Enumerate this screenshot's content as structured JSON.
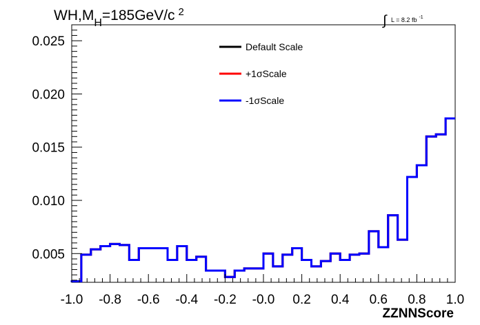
{
  "chart_data": {
    "type": "line",
    "title": "WH,M",
    "title_sub": "H",
    "title_rest": "=185GeV/c",
    "title_sup": "2",
    "lumi_integral": "∫",
    "lumi_text": "L = 8.2 fb",
    "lumi_sup": "-1",
    "xlabel": "ZZNNScore",
    "ylabel": "",
    "xlim": [
      -1.0,
      1.0
    ],
    "ylim": [
      0.0023,
      0.0265
    ],
    "x_ticks": [
      {
        "v": -1.0,
        "label": "-1.0"
      },
      {
        "v": -0.8,
        "label": "-0.8"
      },
      {
        "v": -0.6,
        "label": "-0.6"
      },
      {
        "v": -0.4,
        "label": "-0.4"
      },
      {
        "v": -0.2,
        "label": "-0.2"
      },
      {
        "v": 0.0,
        "label": "-0.0"
      },
      {
        "v": 0.2,
        "label": "0.2"
      },
      {
        "v": 0.4,
        "label": "0.4"
      },
      {
        "v": 0.6,
        "label": "0.6"
      },
      {
        "v": 0.8,
        "label": "0.8"
      },
      {
        "v": 1.0,
        "label": "1.0"
      }
    ],
    "y_ticks": [
      {
        "v": 0.005,
        "label": "0.005"
      },
      {
        "v": 0.01,
        "label": "0.010"
      },
      {
        "v": 0.015,
        "label": "0.015"
      },
      {
        "v": 0.02,
        "label": "0.020"
      },
      {
        "v": 0.025,
        "label": "0.025"
      }
    ],
    "bin_edges": [
      -1.0,
      -0.95,
      -0.9,
      -0.85,
      -0.8,
      -0.75,
      -0.7,
      -0.65,
      -0.6,
      -0.55,
      -0.5,
      -0.45,
      -0.4,
      -0.35,
      -0.3,
      -0.25,
      -0.2,
      -0.15,
      -0.1,
      -0.05,
      0.0,
      0.05,
      0.1,
      0.15,
      0.2,
      0.25,
      0.3,
      0.35,
      0.4,
      0.45,
      0.5,
      0.55,
      0.6,
      0.65,
      0.7,
      0.75,
      0.8,
      0.85,
      0.9,
      0.95,
      1.0
    ],
    "series": [
      {
        "name": "Default Scale",
        "color": "#000000",
        "values": [
          0.0024,
          0.0049,
          0.0054,
          0.0057,
          0.0059,
          0.0058,
          0.0044,
          0.0055,
          0.0055,
          0.0055,
          0.0044,
          0.0057,
          0.0044,
          0.0047,
          0.0034,
          0.0034,
          0.0028,
          0.0034,
          0.0036,
          0.0036,
          0.005,
          0.0038,
          0.0049,
          0.0055,
          0.0044,
          0.0038,
          0.0043,
          0.005,
          0.0044,
          0.0049,
          0.005,
          0.0071,
          0.0056,
          0.0086,
          0.0063,
          0.0122,
          0.0133,
          0.016,
          0.0162,
          0.0177
        ]
      },
      {
        "name": "+1σScale",
        "color": "#ff0000",
        "values": [
          0.0024,
          0.0049,
          0.0054,
          0.0057,
          0.0059,
          0.0058,
          0.0044,
          0.0055,
          0.0055,
          0.0055,
          0.0044,
          0.0057,
          0.0044,
          0.0047,
          0.0034,
          0.0034,
          0.0028,
          0.0034,
          0.0036,
          0.0036,
          0.005,
          0.0038,
          0.0049,
          0.0055,
          0.0044,
          0.0038,
          0.0043,
          0.005,
          0.0044,
          0.0049,
          0.005,
          0.0071,
          0.0056,
          0.0086,
          0.0063,
          0.0122,
          0.0133,
          0.016,
          0.0162,
          0.0177
        ]
      },
      {
        "name": "-1σScale",
        "color": "#0000ff",
        "values": [
          0.0024,
          0.0049,
          0.0054,
          0.0057,
          0.0059,
          0.0058,
          0.0044,
          0.0055,
          0.0055,
          0.0055,
          0.0044,
          0.0057,
          0.0044,
          0.0047,
          0.0034,
          0.0034,
          0.0028,
          0.0034,
          0.0036,
          0.0036,
          0.005,
          0.0038,
          0.0049,
          0.0055,
          0.0044,
          0.0038,
          0.0043,
          0.005,
          0.0044,
          0.0049,
          0.005,
          0.0071,
          0.0056,
          0.0086,
          0.0063,
          0.0122,
          0.0133,
          0.016,
          0.0162,
          0.0177
        ]
      }
    ],
    "legend_position": "top-center",
    "grid": false
  }
}
